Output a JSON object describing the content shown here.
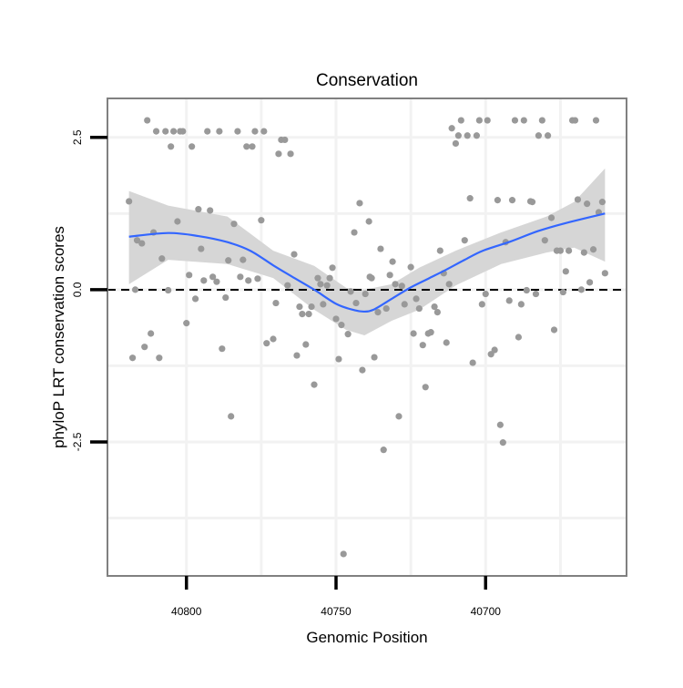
{
  "chart_data": {
    "type": "scatter",
    "title": "Conservation",
    "xlabel": "Genomic Position",
    "ylabel": "phyloP LRT conservation scores",
    "x_reversed": true,
    "xlim": [
      40826.4,
      40652.9
    ],
    "ylim": [
      -4.7,
      3.14
    ],
    "x_ticks": [
      40800,
      40750,
      40700
    ],
    "x_tick_labels": [
      "40800",
      "40750",
      "40700"
    ],
    "y_ticks": [
      2.5,
      0,
      -2.5
    ],
    "y_tick_labels": [
      "2.5",
      "0.0",
      "-2.5"
    ],
    "x_minor_grid": [
      40775,
      40725,
      40675
    ],
    "y_minor_grid": [
      1.25,
      -1.25,
      -3.75
    ],
    "grid": true,
    "reference_line": {
      "y": 0,
      "style": "dashed"
    },
    "colors": {
      "points": "#999999",
      "smooth": "#3366ff",
      "band": "#d4d4d4",
      "panel_border": "#808080"
    },
    "points": [
      [
        40813.1,
        2.78
      ],
      [
        40810.1,
        2.6
      ],
      [
        40807.0,
        2.6
      ],
      [
        40804.3,
        2.6
      ],
      [
        40802.1,
        2.6
      ],
      [
        40801.2,
        2.6
      ],
      [
        40793.0,
        2.6
      ],
      [
        40789.0,
        2.6
      ],
      [
        40782.9,
        2.6
      ],
      [
        40777.1,
        2.6
      ],
      [
        40774.1,
        2.6
      ],
      [
        40805.2,
        2.35
      ],
      [
        40798.2,
        2.35
      ],
      [
        40779.9,
        2.35
      ],
      [
        40778.0,
        2.35
      ],
      [
        40768.3,
        2.46
      ],
      [
        40767.1,
        2.46
      ],
      [
        40769.2,
        2.23
      ],
      [
        40765.2,
        2.23
      ],
      [
        40819.2,
        1.45
      ],
      [
        40796.0,
        1.32
      ],
      [
        40792.1,
        1.3
      ],
      [
        40803.0,
        1.12
      ],
      [
        40784.1,
        1.08
      ],
      [
        40775.0,
        1.14
      ],
      [
        40811.0,
        0.94
      ],
      [
        40816.5,
        0.81
      ],
      [
        40814.9,
        0.76
      ],
      [
        40795.1,
        0.67
      ],
      [
        40808.2,
        0.51
      ],
      [
        40786.0,
        0.48
      ],
      [
        40781.1,
        0.49
      ],
      [
        40764.0,
        0.58
      ],
      [
        40751.2,
        0.36
      ],
      [
        40799.1,
        0.24
      ],
      [
        40782.0,
        0.21
      ],
      [
        40794.2,
        0.15
      ],
      [
        40791.2,
        0.21
      ],
      [
        40789.9,
        0.13
      ],
      [
        40779.3,
        0.15
      ],
      [
        40776.2,
        0.18
      ],
      [
        40756.1,
        0.19
      ],
      [
        40752.1,
        0.19
      ],
      [
        40755.2,
        0.09
      ],
      [
        40753.0,
        0.07
      ],
      [
        40766.2,
        0.07
      ],
      [
        40817.1,
        0
      ],
      [
        40806.1,
        -0.01
      ],
      [
        40745.1,
        -0.03
      ],
      [
        40740.2,
        -0.07
      ],
      [
        40797.0,
        -0.15
      ],
      [
        40786.9,
        -0.13
      ],
      [
        40770.1,
        -0.22
      ],
      [
        40754.3,
        -0.24
      ],
      [
        40743.3,
        -0.22
      ],
      [
        40762.2,
        -0.28
      ],
      [
        40758.2,
        -0.28
      ],
      [
        40761.3,
        -0.4
      ],
      [
        40759.1,
        -0.4
      ],
      [
        40750.0,
        -0.48
      ],
      [
        40748.2,
        -0.58
      ],
      [
        40746.0,
        -0.73
      ],
      [
        40800.0,
        -0.55
      ],
      [
        40811.9,
        -0.72
      ],
      [
        40814.0,
        -0.94
      ],
      [
        40788.1,
        -0.97
      ],
      [
        40773.2,
        -0.88
      ],
      [
        40771.0,
        -0.81
      ],
      [
        40760.1,
        -0.9
      ],
      [
        40763.1,
        -1.08
      ],
      [
        40818.0,
        -1.12
      ],
      [
        40809.1,
        -1.12
      ],
      [
        40749.1,
        -1.14
      ],
      [
        40741.2,
        -1.32
      ],
      [
        40757.3,
        -1.56
      ],
      [
        40785.1,
        -2.08
      ],
      [
        40742.1,
        1.42
      ],
      [
        40739.0,
        1.12
      ],
      [
        40743.9,
        0.94
      ],
      [
        40738.7,
        0.21
      ],
      [
        40747.5,
        -4.34
      ],
      [
        40708.2,
        2.78
      ],
      [
        40702.1,
        2.78
      ],
      [
        40699.4,
        2.78
      ],
      [
        40690.2,
        2.78
      ],
      [
        40687.2,
        2.78
      ],
      [
        40681.1,
        2.78
      ],
      [
        40671.0,
        2.78
      ],
      [
        40670.1,
        2.78
      ],
      [
        40663.1,
        2.78
      ],
      [
        40711.3,
        2.65
      ],
      [
        40709.1,
        2.53
      ],
      [
        40706.1,
        2.53
      ],
      [
        40703.0,
        2.53
      ],
      [
        40682.3,
        2.53
      ],
      [
        40679.2,
        2.53
      ],
      [
        40710.0,
        2.4
      ],
      [
        40705.2,
        1.5
      ],
      [
        40696.0,
        1.47
      ],
      [
        40691.1,
        1.47
      ],
      [
        40685.0,
        1.45
      ],
      [
        40684.4,
        1.44
      ],
      [
        40669.2,
        1.48
      ],
      [
        40666.1,
        1.41
      ],
      [
        40661.0,
        1.44
      ],
      [
        40662.2,
        1.27
      ],
      [
        40678.0,
        1.18
      ],
      [
        40707.0,
        0.81
      ],
      [
        40693.3,
        0.78
      ],
      [
        40680.2,
        0.81
      ],
      [
        40735.1,
        0.67
      ],
      [
        40715.2,
        0.64
      ],
      [
        40676.2,
        0.64
      ],
      [
        40675.0,
        0.64
      ],
      [
        40672.2,
        0.64
      ],
      [
        40667.1,
        0.61
      ],
      [
        40664.0,
        0.66
      ],
      [
        40731.1,
        0.46
      ],
      [
        40725.0,
        0.37
      ],
      [
        40673.2,
        0.3
      ],
      [
        40660.1,
        0.27
      ],
      [
        40738.1,
        0.19
      ],
      [
        40732.0,
        0.24
      ],
      [
        40714.0,
        0.27
      ],
      [
        40730.2,
        0.09
      ],
      [
        40728.0,
        0.06
      ],
      [
        40712.2,
        0.09
      ],
      [
        40665.2,
        0.12
      ],
      [
        40668.0,
        0.0
      ],
      [
        40674.1,
        -0.04
      ],
      [
        40686.3,
        -0.01
      ],
      [
        40683.2,
        -0.07
      ],
      [
        40700.0,
        -0.07
      ],
      [
        40723.2,
        -0.15
      ],
      [
        40727.1,
        -0.24
      ],
      [
        40701.2,
        -0.24
      ],
      [
        40692.1,
        -0.18
      ],
      [
        40688.1,
        -0.24
      ],
      [
        40722.2,
        -0.31
      ],
      [
        40717.1,
        -0.28
      ],
      [
        40716.1,
        -0.37
      ],
      [
        40736.0,
        -0.37
      ],
      [
        40733.2,
        -0.31
      ],
      [
        40724.1,
        -0.72
      ],
      [
        40719.2,
        -0.72
      ],
      [
        40718.3,
        -0.7
      ],
      [
        40721.0,
        -0.91
      ],
      [
        40713.1,
        -0.87
      ],
      [
        40689.0,
        -0.78
      ],
      [
        40677.1,
        -0.66
      ],
      [
        40737.2,
        -1.11
      ],
      [
        40697.0,
        -0.99
      ],
      [
        40698.2,
        -1.06
      ],
      [
        40704.3,
        -1.2
      ],
      [
        40720.1,
        -1.6
      ],
      [
        40729.0,
        -2.08
      ],
      [
        40695.1,
        -2.22
      ],
      [
        40694.2,
        -2.51
      ],
      [
        40734.1,
        -2.63
      ]
    ],
    "smooth": {
      "x": [
        40819.2,
        40806.1,
        40796.0,
        40786.3,
        40778.7,
        40771.0,
        40764.9,
        40757.3,
        40749.7,
        40743.6,
        40740.5,
        40737.5,
        40731.4,
        40725.3,
        40719.2,
        40713.1,
        40707.0,
        40700.9,
        40691.7,
        40682.6,
        40673.5,
        40660.1
      ],
      "y": [
        0.87,
        0.93,
        0.88,
        0.78,
        0.64,
        0.4,
        0.22,
        0.0,
        -0.24,
        -0.34,
        -0.36,
        -0.33,
        -0.15,
        0.03,
        0.18,
        0.33,
        0.49,
        0.64,
        0.79,
        0.96,
        1.09,
        1.25
      ]
    },
    "confidence_band": {
      "x": [
        40819.2,
        40806.1,
        40786.3,
        40771.0,
        40757.3,
        40746.6,
        40740.5,
        40731.4,
        40722.2,
        40710.0,
        40694.8,
        40679.6,
        40670.4,
        40660.1
      ],
      "upper": [
        1.62,
        1.38,
        1.2,
        0.64,
        0.39,
        0.03,
        0.0,
        0.09,
        0.36,
        0.64,
        0.94,
        1.2,
        1.44,
        1.99
      ],
      "lower": [
        0.09,
        0.49,
        0.42,
        0.19,
        -0.33,
        -0.66,
        -0.75,
        -0.51,
        -0.33,
        0.07,
        0.42,
        0.61,
        0.69,
        0.46
      ]
    }
  }
}
